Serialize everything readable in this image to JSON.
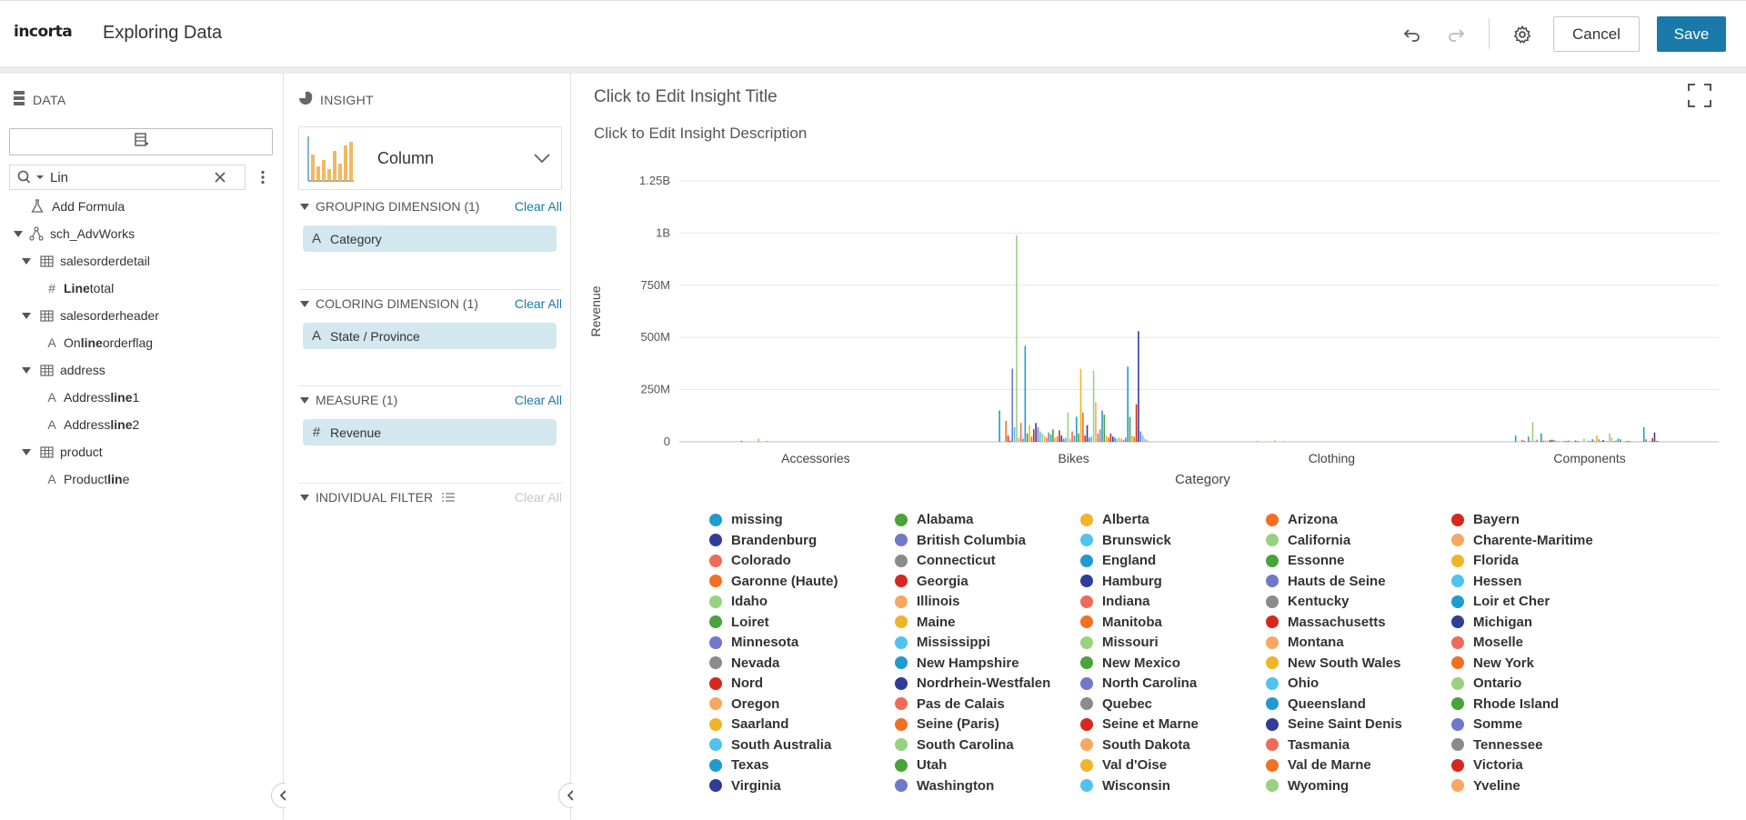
{
  "header": {
    "logo": "incorta",
    "title": "Exploring Data",
    "cancel_label": "Cancel",
    "save_label": "Save"
  },
  "data_panel": {
    "title": "DATA",
    "search_value": "Lin",
    "tree": [
      {
        "label": "Add Formula",
        "icon": "formula-icon",
        "level": 1,
        "caret": false,
        "name": "add-formula"
      },
      {
        "label": "sch_AdvWorks",
        "icon": "schema-icon",
        "level": 0,
        "caret": true,
        "name": "schema-sch-advworks"
      },
      {
        "label": "salesorderdetail",
        "icon": "table-icon",
        "level": 1,
        "caret": true,
        "name": "table-salesorderdetail"
      },
      {
        "label_pre": "",
        "label_bold": "Line",
        "label_post": "total",
        "icon": "measure-icon",
        "level": 2,
        "caret": false,
        "name": "column-linetotal"
      },
      {
        "label": "salesorderheader",
        "icon": "table-icon",
        "level": 1,
        "caret": true,
        "name": "table-salesorderheader"
      },
      {
        "label_pre": "Online",
        "label_bold": "",
        "label_post": "orderflag",
        "icon": "dimension-icon",
        "level": 2,
        "caret": false,
        "name": "column-onlineorderflag",
        "bold_mid": "line",
        "pre2": "On"
      },
      {
        "label": "address",
        "icon": "table-icon",
        "level": 1,
        "caret": true,
        "name": "table-address"
      },
      {
        "label_pre": "Address",
        "label_bold": "line",
        "label_post": "1",
        "icon": "dimension-icon",
        "level": 2,
        "caret": false,
        "name": "column-addressline1"
      },
      {
        "label_pre": "Address",
        "label_bold": "line",
        "label_post": "2",
        "icon": "dimension-icon",
        "level": 2,
        "caret": false,
        "name": "column-addressline2"
      },
      {
        "label": "product",
        "icon": "table-icon",
        "level": 1,
        "caret": true,
        "name": "table-product"
      },
      {
        "label_pre": "Product",
        "label_bold": "lin",
        "label_post": "e",
        "icon": "dimension-icon",
        "level": 2,
        "caret": false,
        "name": "column-productline"
      }
    ]
  },
  "insight_panel": {
    "title": "INSIGHT",
    "viz_type": "Column",
    "grouping": {
      "label": "GROUPING DIMENSION (1)",
      "clear": "Clear All",
      "pill": "Category"
    },
    "coloring": {
      "label": "COLORING DIMENSION (1)",
      "clear": "Clear All",
      "pill": "State / Province"
    },
    "measure": {
      "label": "MEASURE (1)",
      "clear": "Clear All",
      "pill": "Revenue"
    },
    "filter": {
      "label": "INDIVIDUAL FILTER",
      "clear": "Clear All"
    }
  },
  "chart": {
    "title": "Click to Edit Insight Title",
    "description": "Click to Edit Insight Description"
  },
  "chart_data": {
    "type": "bar",
    "xlabel": "Category",
    "ylabel": "Revenue",
    "ylim": [
      0,
      1250000000
    ],
    "yticks": [
      {
        "value": 0,
        "label": "0"
      },
      {
        "value": 250000000,
        "label": "250M"
      },
      {
        "value": 500000000,
        "label": "500M"
      },
      {
        "value": 750000000,
        "label": "750M"
      },
      {
        "value": 1000000000,
        "label": "1B"
      },
      {
        "value": 1250000000,
        "label": "1.25B"
      }
    ],
    "grid": true,
    "legend_position": "bottom",
    "categories": [
      "Accessories",
      "Bikes",
      "Clothing",
      "Components"
    ],
    "palette": [
      "#1f9bcf",
      "#4aa23a",
      "#f0b429",
      "#f36f21",
      "#d7281e",
      "#2f3d99",
      "#6f78c9",
      "#4fc3ee",
      "#98d27f",
      "#f6a860",
      "#ef6a5a",
      "#8b8b8b"
    ],
    "series": [
      {
        "name": "missing",
        "values": [
          5000000,
          150000000,
          3000000,
          30000000
        ]
      },
      {
        "name": "Alabama",
        "values": [
          0,
          0,
          0,
          0
        ]
      },
      {
        "name": "Alberta",
        "values": [
          0,
          0,
          0,
          0
        ]
      },
      {
        "name": "Arizona",
        "values": [
          0,
          100000000,
          0,
          10000000
        ]
      },
      {
        "name": "Bayern",
        "values": [
          0,
          30000000,
          0,
          5000000
        ]
      },
      {
        "name": "Brandenburg",
        "values": [
          0,
          5000000,
          0,
          0
        ]
      },
      {
        "name": "British Columbia",
        "values": [
          0,
          350000000,
          0,
          25000000
        ]
      },
      {
        "name": "Brunswick",
        "values": [
          0,
          70000000,
          0,
          5000000
        ]
      },
      {
        "name": "California",
        "values": [
          15000000,
          990000000,
          8000000,
          95000000
        ]
      },
      {
        "name": "Charente-Maritime",
        "values": [
          0,
          20000000,
          0,
          5000000
        ]
      },
      {
        "name": "Colorado",
        "values": [
          0,
          90000000,
          0,
          10000000
        ]
      },
      {
        "name": "Connecticut",
        "values": [
          0,
          15000000,
          0,
          0
        ]
      },
      {
        "name": "England",
        "values": [
          3000000,
          460000000,
          2000000,
          40000000
        ]
      },
      {
        "name": "Essonne",
        "values": [
          0,
          40000000,
          0,
          5000000
        ]
      },
      {
        "name": "Florida",
        "values": [
          0,
          80000000,
          0,
          8000000
        ]
      },
      {
        "name": "Garonne (Haute)",
        "values": [
          0,
          25000000,
          0,
          3000000
        ]
      },
      {
        "name": "Georgia",
        "values": [
          0,
          60000000,
          0,
          8000000
        ]
      },
      {
        "name": "Hamburg",
        "values": [
          0,
          90000000,
          0,
          10000000
        ]
      },
      {
        "name": "Hauts de Seine",
        "values": [
          0,
          70000000,
          0,
          8000000
        ]
      },
      {
        "name": "Hessen",
        "values": [
          0,
          50000000,
          0,
          5000000
        ]
      },
      {
        "name": "Idaho",
        "values": [
          0,
          40000000,
          0,
          5000000
        ]
      },
      {
        "name": "Illinois",
        "values": [
          0,
          30000000,
          0,
          3000000
        ]
      },
      {
        "name": "Indiana",
        "values": [
          0,
          20000000,
          0,
          2000000
        ]
      },
      {
        "name": "Kentucky",
        "values": [
          0,
          45000000,
          0,
          5000000
        ]
      },
      {
        "name": "Loir et Cher",
        "values": [
          0,
          35000000,
          0,
          4000000
        ]
      },
      {
        "name": "Loiret",
        "values": [
          0,
          60000000,
          0,
          6000000
        ]
      },
      {
        "name": "Maine",
        "values": [
          0,
          20000000,
          0,
          2000000
        ]
      },
      {
        "name": "Manitoba",
        "values": [
          0,
          25000000,
          0,
          2000000
        ]
      },
      {
        "name": "Massachusetts",
        "values": [
          0,
          55000000,
          0,
          6000000
        ]
      },
      {
        "name": "Michigan",
        "values": [
          0,
          30000000,
          0,
          3000000
        ]
      },
      {
        "name": "Minnesota",
        "values": [
          0,
          15000000,
          0,
          2000000
        ]
      },
      {
        "name": "Mississippi",
        "values": [
          0,
          20000000,
          0,
          2000000
        ]
      },
      {
        "name": "Missouri",
        "values": [
          0,
          140000000,
          0,
          15000000
        ]
      },
      {
        "name": "Montana",
        "values": [
          0,
          15000000,
          0,
          2000000
        ]
      },
      {
        "name": "Moselle",
        "values": [
          0,
          50000000,
          0,
          5000000
        ]
      },
      {
        "name": "Nevada",
        "values": [
          0,
          30000000,
          0,
          3000000
        ]
      },
      {
        "name": "New Hampshire",
        "values": [
          0,
          120000000,
          0,
          12000000
        ]
      },
      {
        "name": "New Mexico",
        "values": [
          0,
          40000000,
          0,
          4000000
        ]
      },
      {
        "name": "New South Wales",
        "values": [
          0,
          350000000,
          0,
          30000000
        ]
      },
      {
        "name": "New York",
        "values": [
          0,
          140000000,
          0,
          12000000
        ]
      },
      {
        "name": "Nord",
        "values": [
          0,
          30000000,
          0,
          3000000
        ]
      },
      {
        "name": "Nordrhein-Westfalen",
        "values": [
          0,
          80000000,
          0,
          8000000
        ]
      },
      {
        "name": "North Carolina",
        "values": [
          0,
          20000000,
          0,
          2000000
        ]
      },
      {
        "name": "Ohio",
        "values": [
          0,
          25000000,
          0,
          3000000
        ]
      },
      {
        "name": "Ontario",
        "values": [
          0,
          340000000,
          0,
          40000000
        ]
      },
      {
        "name": "Oregon",
        "values": [
          0,
          190000000,
          0,
          20000000
        ]
      },
      {
        "name": "Pas de Calais",
        "values": [
          0,
          40000000,
          0,
          4000000
        ]
      },
      {
        "name": "Quebec",
        "values": [
          0,
          60000000,
          0,
          6000000
        ]
      },
      {
        "name": "Queensland",
        "values": [
          0,
          150000000,
          0,
          15000000
        ]
      },
      {
        "name": "Rhode Island",
        "values": [
          0,
          130000000,
          0,
          12000000
        ]
      },
      {
        "name": "Somme",
        "values": [
          0,
          30000000,
          0,
          3000000
        ]
      },
      {
        "name": "Saarland",
        "values": [
          0,
          20000000,
          0,
          2000000
        ]
      },
      {
        "name": "Seine (Paris)",
        "values": [
          0,
          40000000,
          0,
          4000000
        ]
      },
      {
        "name": "Seine et Marne",
        "values": [
          0,
          25000000,
          0,
          3000000
        ]
      },
      {
        "name": "Seine Saint Denis",
        "values": [
          0,
          20000000,
          0,
          2000000
        ]
      },
      {
        "name": "South Australia",
        "values": [
          0,
          15000000,
          0,
          2000000
        ]
      },
      {
        "name": "South Carolina",
        "values": [
          0,
          20000000,
          0,
          2000000
        ]
      },
      {
        "name": "South Dakota",
        "values": [
          0,
          15000000,
          0,
          2000000
        ]
      },
      {
        "name": "Tasmania",
        "values": [
          0,
          10000000,
          0,
          1000000
        ]
      },
      {
        "name": "Tennessee",
        "values": [
          0,
          20000000,
          0,
          2000000
        ]
      },
      {
        "name": "Texas",
        "values": [
          0,
          360000000,
          0,
          70000000
        ]
      },
      {
        "name": "Utah",
        "values": [
          0,
          120000000,
          0,
          12000000
        ]
      },
      {
        "name": "Val d'Oise",
        "values": [
          0,
          30000000,
          0,
          3000000
        ]
      },
      {
        "name": "Val de Marne",
        "values": [
          0,
          25000000,
          0,
          3000000
        ]
      },
      {
        "name": "Victoria",
        "values": [
          0,
          180000000,
          0,
          18000000
        ]
      },
      {
        "name": "Virginia",
        "values": [
          0,
          530000000,
          0,
          45000000
        ]
      },
      {
        "name": "Washington",
        "values": [
          0,
          50000000,
          0,
          5000000
        ]
      },
      {
        "name": "Wisconsin",
        "values": [
          0,
          30000000,
          0,
          3000000
        ]
      },
      {
        "name": "Wyoming",
        "values": [
          0,
          15000000,
          0,
          2000000
        ]
      },
      {
        "name": "Yveline",
        "values": [
          0,
          10000000,
          0,
          1000000
        ]
      }
    ]
  },
  "legend": {
    "items": [
      "missing",
      "Alabama",
      "Alberta",
      "Arizona",
      "Bayern",
      "Brandenburg",
      "British Columbia",
      "Brunswick",
      "California",
      "Charente-Maritime",
      "Colorado",
      "Connecticut",
      "England",
      "Essonne",
      "Florida",
      "Garonne (Haute)",
      "Georgia",
      "Hamburg",
      "Hauts de Seine",
      "Hessen",
      "Idaho",
      "Illinois",
      "Indiana",
      "Kentucky",
      "Loir et Cher",
      "Loiret",
      "Maine",
      "Manitoba",
      "Massachusetts",
      "Michigan",
      "Minnesota",
      "Mississippi",
      "Missouri",
      "Montana",
      "Moselle",
      "Nevada",
      "New Hampshire",
      "New Mexico",
      "New South Wales",
      "New York",
      "Nord",
      "Nordrhein-Westfalen",
      "North Carolina",
      "Ohio",
      "Ontario",
      "Oregon",
      "Pas de Calais",
      "Quebec",
      "Queensland",
      "Rhode Island",
      "Saarland",
      "Seine (Paris)",
      "Seine et Marne",
      "Seine Saint Denis",
      "Somme",
      "South Australia",
      "South Carolina",
      "South Dakota",
      "Tasmania",
      "Tennessee",
      "Texas",
      "Utah",
      "Val d'Oise",
      "Val de Marne",
      "Victoria",
      "Virginia",
      "Washington",
      "Wisconsin",
      "Wyoming",
      "Yveline"
    ]
  }
}
